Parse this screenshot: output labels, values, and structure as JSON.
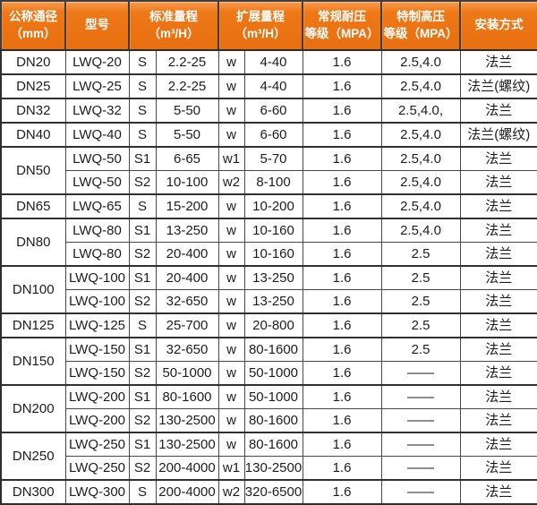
{
  "colors": {
    "header_background": "#ee7817",
    "header_background_light": "#f89b50",
    "border": "#484848",
    "outer_border": "#2d2d2d",
    "header_text": "#ffffff",
    "body_text": "#1d1d1d"
  },
  "table": {
    "headers": [
      {
        "label": "公称通径\n（mm）"
      },
      {
        "label": "型号"
      },
      {
        "label": "标准量程\n（m³/H）"
      },
      {
        "label": "扩展量程\n（m³/H）"
      },
      {
        "label": "常规耐压\n等级（MPA）"
      },
      {
        "label": "特制高压\n等级（MPA）"
      },
      {
        "label": "安装方式"
      }
    ],
    "groups": [
      {
        "dn": "DN20",
        "rows": [
          [
            "LWQ-20",
            "S",
            "2.2-25",
            "w",
            "4-40",
            "1.6",
            "2.5,4.0",
            "法兰"
          ]
        ]
      },
      {
        "dn": "DN25",
        "rows": [
          [
            "LWQ-25",
            "S",
            "2.2-25",
            "w",
            "4-40",
            "1.6",
            "2.5,4.0",
            "法兰(螺纹)"
          ]
        ]
      },
      {
        "dn": "DN32",
        "rows": [
          [
            "LWQ-32",
            "S",
            "5-50",
            "w",
            "6-60",
            "1.6",
            "2.5,4.0,",
            "法兰"
          ]
        ]
      },
      {
        "dn": "DN40",
        "rows": [
          [
            "LWQ-40",
            "S",
            "5-50",
            "w",
            "6-60",
            "1.6",
            "2.5,4.0",
            "法兰(螺纹)"
          ]
        ]
      },
      {
        "dn": "DN50",
        "rows": [
          [
            "LWQ-50",
            "S1",
            "6-65",
            "w1",
            "5-70",
            "1.6",
            "2.5,4.0",
            "法兰"
          ],
          [
            "LWQ-50",
            "S2",
            "10-100",
            "w2",
            "8-100",
            "1.6",
            "2.5,4.0",
            "法兰"
          ]
        ]
      },
      {
        "dn": "DN65",
        "rows": [
          [
            "LWQ-65",
            "S",
            "15-200",
            "w",
            "10-200",
            "1.6",
            "2.5,4.0",
            "法兰"
          ]
        ]
      },
      {
        "dn": "DN80",
        "rows": [
          [
            "LWQ-80",
            "S1",
            "13-250",
            "w",
            "10-160",
            "1.6",
            "2.5,4.0",
            "法兰"
          ],
          [
            "LWQ-80",
            "S2",
            "20-400",
            "w",
            "10-160",
            "1.6",
            "2.5",
            "法兰"
          ]
        ]
      },
      {
        "dn": "DN100",
        "rows": [
          [
            "LWQ-100",
            "S1",
            "20-400",
            "w",
            "13-250",
            "1.6",
            "2.5",
            "法兰"
          ],
          [
            "LWQ-100",
            "S2",
            "32-650",
            "w",
            "13-250",
            "1.6",
            "2.5",
            "法兰"
          ]
        ]
      },
      {
        "dn": "DN125",
        "rows": [
          [
            "LWQ-125",
            "S",
            "25-700",
            "w",
            "20-800",
            "1.6",
            "2.5",
            "法兰"
          ]
        ]
      },
      {
        "dn": "DN150",
        "rows": [
          [
            "LWQ-150",
            "S1",
            "32-650",
            "w",
            "80-1600",
            "1.6",
            "2.5",
            "法兰"
          ],
          [
            "LWQ-150",
            "S2",
            "50-1000",
            "w",
            "50-1000",
            "1.6",
            "——",
            "法兰"
          ]
        ]
      },
      {
        "dn": "DN200",
        "rows": [
          [
            "LWQ-200",
            "S1",
            "80-1600",
            "w",
            "50-1000",
            "1.6",
            "——",
            "法兰"
          ],
          [
            "LWQ-200",
            "S2",
            "130-2500",
            "w",
            "80-1600",
            "1.6",
            "——",
            "法兰"
          ]
        ]
      },
      {
        "dn": "DN250",
        "rows": [
          [
            "LWQ-250",
            "S1",
            "130-2500",
            "w",
            "80-1600",
            "1.6",
            "——",
            "法兰"
          ],
          [
            "LWQ-250",
            "S2",
            "200-4000",
            "w1",
            "130-2500",
            "1.6",
            "——",
            "法兰"
          ]
        ]
      },
      {
        "dn": "DN300",
        "rows": [
          [
            "LWQ-300",
            "S",
            "200-4000",
            "w2",
            "320-6500",
            "1.6",
            "——",
            "法兰"
          ]
        ]
      }
    ]
  }
}
